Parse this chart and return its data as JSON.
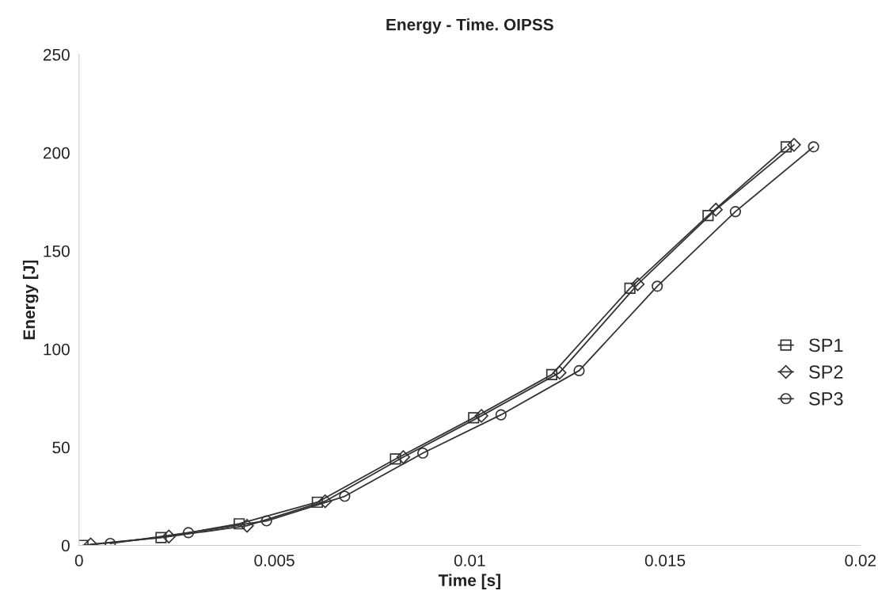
{
  "chart_data": {
    "type": "line",
    "title": "Energy - Time. OIPSS",
    "xlabel": "Time [s]",
    "ylabel": "Energy [J]",
    "xlim": [
      0,
      0.02
    ],
    "xticks": [
      0,
      0.005,
      0.01,
      0.015,
      0.02
    ],
    "ylim": [
      0,
      250
    ],
    "yticks": [
      0,
      50,
      100,
      150,
      200,
      250
    ],
    "grid": false,
    "legend": "right",
    "series": [
      {
        "name": "SP1",
        "color": "#333333",
        "marker": "square",
        "x": [
          0.0001,
          0.0021,
          0.0041,
          0.0061,
          0.0081,
          0.0101,
          0.0121,
          0.0141,
          0.0161,
          0.0181
        ],
        "values": [
          0,
          4,
          11,
          22,
          44,
          65,
          87,
          131,
          168,
          203
        ]
      },
      {
        "name": "SP2",
        "color": "#333333",
        "marker": "diamond",
        "x": [
          0.0003,
          0.0023,
          0.0043,
          0.0063,
          0.0083,
          0.0103,
          0.0123,
          0.0143,
          0.0163,
          0.0183
        ],
        "values": [
          0.5,
          4.5,
          10,
          22.5,
          45,
          66,
          88,
          133,
          171,
          204
        ]
      },
      {
        "name": "SP3",
        "color": "#333333",
        "marker": "circle",
        "x": [
          0.0008,
          0.0028,
          0.0048,
          0.0068,
          0.0088,
          0.0108,
          0.0128,
          0.0148,
          0.0168,
          0.0188
        ],
        "values": [
          1,
          6.5,
          12.5,
          25,
          47,
          66.5,
          89,
          132,
          170,
          203
        ]
      }
    ]
  }
}
